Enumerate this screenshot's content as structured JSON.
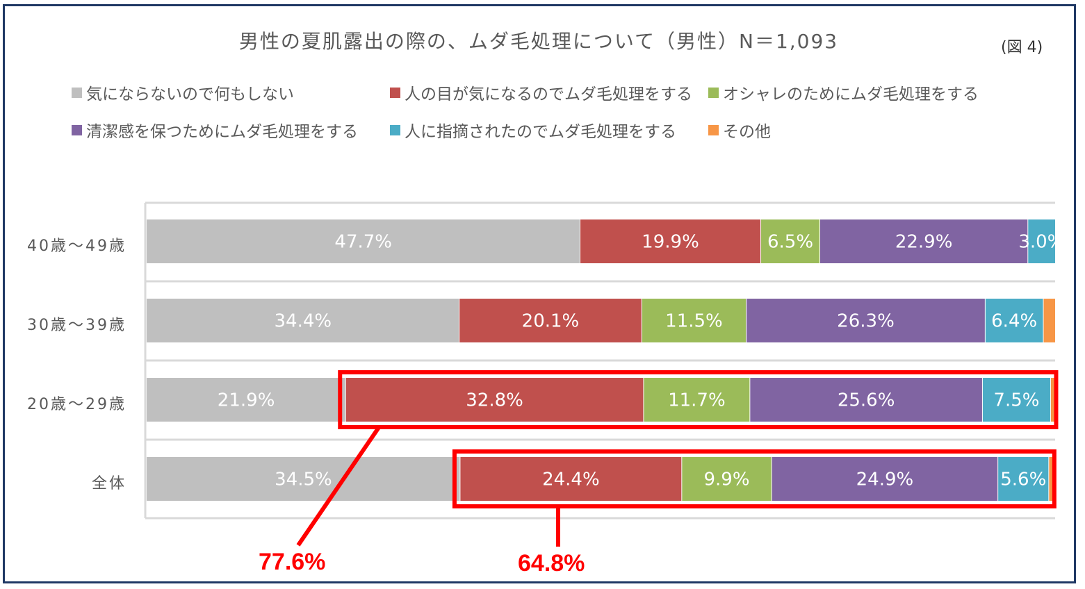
{
  "figure_label": "(図 4)",
  "chart_data": {
    "type": "bar",
    "orientation": "horizontal",
    "stacked": "percent",
    "title": "男性の夏肌露出の際の、ムダ毛処理について（男性）N＝1,093",
    "categories": [
      "40歳～49歳",
      "30歳～39歳",
      "20歳～29歳",
      "全体"
    ],
    "xlim": [
      0,
      100
    ],
    "legend_position": "top",
    "series": [
      {
        "name": "気にならないので何もしない",
        "color": "#bfbfbf",
        "values": [
          47.7,
          34.4,
          21.9,
          34.5
        ],
        "labels": [
          "47.7%",
          "34.4%",
          "21.9%",
          "34.5%"
        ]
      },
      {
        "name": "人の目が気になるのでムダ毛処理をする",
        "color": "#c0504d",
        "values": [
          19.9,
          20.1,
          32.8,
          24.4
        ],
        "labels": [
          "19.9%",
          "20.1%",
          "32.8%",
          "24.4%"
        ]
      },
      {
        "name": "オシャレのためにムダ毛処理をする",
        "color": "#9bbb59",
        "values": [
          6.5,
          11.5,
          11.7,
          9.9
        ],
        "labels": [
          "6.5%",
          "11.5%",
          "11.7%",
          "9.9%"
        ]
      },
      {
        "name": "清潔感を保つためにムダ毛処理をする",
        "color": "#8064a2",
        "values": [
          22.9,
          26.3,
          25.6,
          24.9
        ],
        "labels": [
          "22.9%",
          "26.3%",
          "25.6%",
          "24.9%"
        ]
      },
      {
        "name": "人に指摘されたのでムダ毛処理をする",
        "color": "#4bacc6",
        "values": [
          3.0,
          6.4,
          7.5,
          5.6
        ],
        "labels": [
          "3.0%",
          "6.4%",
          "7.5%",
          "5.6%"
        ]
      },
      {
        "name": "その他",
        "color": "#f79646",
        "values": [
          0.0,
          1.3,
          0.5,
          0.7
        ],
        "labels": [
          "",
          "",
          "",
          ""
        ]
      }
    ],
    "annotations": [
      {
        "category": "20歳～29歳",
        "text": "77.6%",
        "from_series": 1,
        "to_series": 4,
        "color": "#ff0000"
      },
      {
        "category": "全体",
        "text": "64.8%",
        "from_series": 1,
        "to_series": 4,
        "color": "#ff0000"
      }
    ]
  }
}
